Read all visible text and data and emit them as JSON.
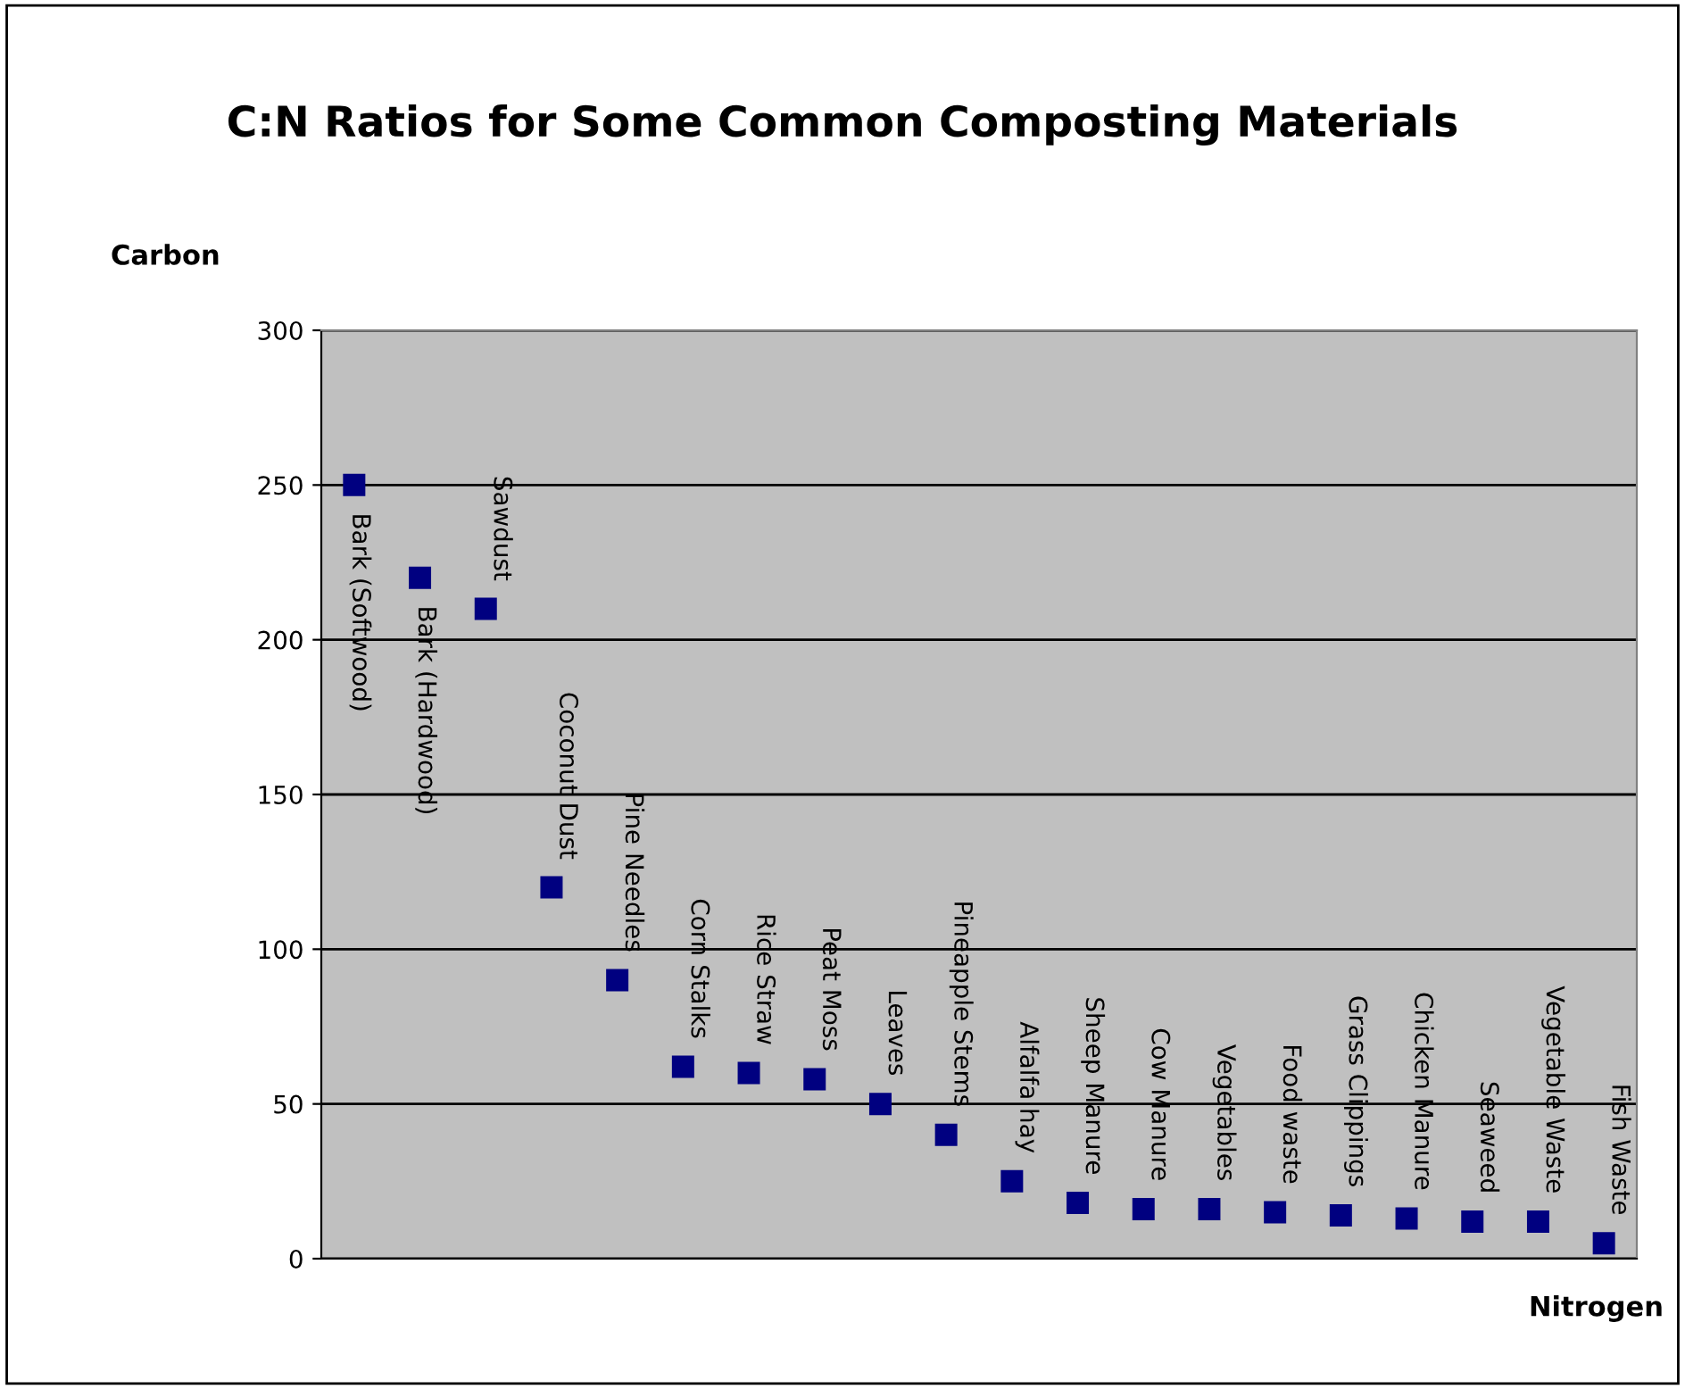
{
  "chart_data": {
    "type": "scatter",
    "title": "C:N Ratios for Some Common Composting Materials",
    "xlabel": "Nitrogen",
    "ylabel": "Carbon",
    "categories": [
      null,
      null,
      null,
      null,
      null,
      null,
      null,
      null,
      null,
      null,
      null,
      null,
      null,
      null,
      null,
      null,
      null,
      null,
      null,
      null
    ],
    "series": [
      {
        "color": "#000080",
        "values": [
          250,
          220,
          210,
          120,
          90,
          62,
          60,
          58,
          50,
          40,
          25,
          18,
          16,
          16,
          15,
          14,
          13,
          12,
          12,
          5
        ],
        "value_labels": [
          "Bark (Softwood)",
          "Bark (Hardwood)",
          "Sawdust",
          "Coconut Dust",
          "Pine Needles",
          "Corn Stalks",
          "Rice Straw",
          "Peat Moss",
          "Leaves",
          "Pineapple Stems",
          "Alfalfa hay",
          "Sheep Manure",
          "Cow Manure",
          "Vegetables",
          "Food waste",
          "Grass Clippings",
          "Chicken Manure",
          "Seaweed",
          "Vegetable Waste",
          "Fish Waste"
        ]
      }
    ],
    "ylim": [
      0,
      300
    ],
    "yticks": [
      0,
      50,
      100,
      150,
      200,
      250,
      300
    ],
    "tick_labels": "y",
    "grid": "y",
    "marker": "square"
  }
}
